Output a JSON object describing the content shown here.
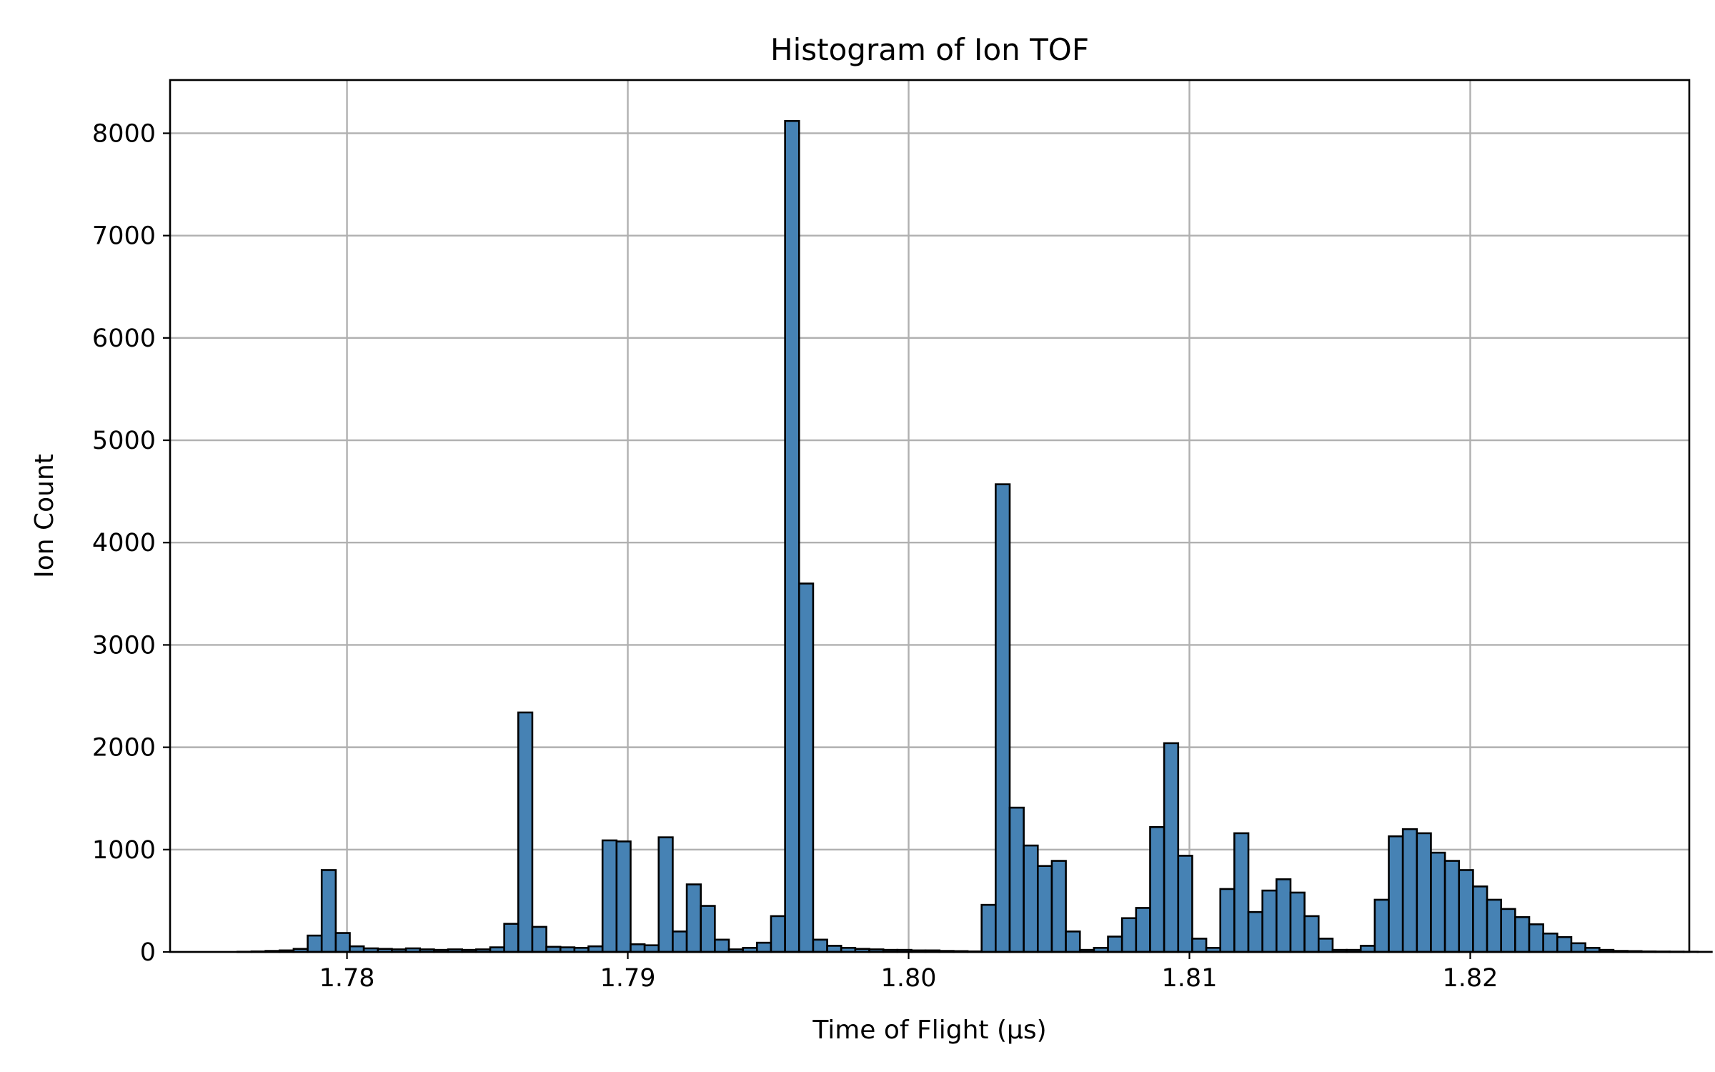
{
  "chart_data": {
    "type": "bar",
    "title": "Histogram of Ion TOF",
    "xlabel": "Time of Flight (µs)",
    "ylabel": "Ion Count",
    "xlim": [
      1.7737,
      1.8278
    ],
    "ylim": [
      0,
      8520
    ],
    "grid": true,
    "bar_color": "#4682b4",
    "edge_color": "#000000",
    "x_ticks": [
      1.78,
      1.79,
      1.8,
      1.81,
      1.82
    ],
    "x_tick_labels": [
      "1.78",
      "1.79",
      "1.80",
      "1.81",
      "1.82"
    ],
    "y_ticks": [
      0,
      1000,
      2000,
      3000,
      4000,
      5000,
      6000,
      7000,
      8000
    ],
    "y_tick_labels": [
      "0",
      "1000",
      "2000",
      "3000",
      "4000",
      "5000",
      "6000",
      "7000",
      "8000"
    ],
    "bin_start": 1.7761,
    "bin_width": 0.0005,
    "values": [
      2,
      5,
      10,
      15,
      30,
      160,
      800,
      185,
      55,
      35,
      30,
      25,
      35,
      25,
      20,
      25,
      20,
      25,
      45,
      275,
      2340,
      245,
      50,
      45,
      40,
      55,
      1090,
      1080,
      75,
      65,
      1120,
      200,
      660,
      450,
      120,
      25,
      40,
      90,
      350,
      8120,
      3600,
      120,
      60,
      40,
      30,
      25,
      20,
      20,
      15,
      15,
      10,
      8,
      5,
      460,
      4570,
      1410,
      1040,
      840,
      890,
      200,
      20,
      40,
      150,
      330,
      430,
      1220,
      2040,
      940,
      130,
      40,
      615,
      1160,
      390,
      600,
      710,
      580,
      350,
      130,
      20,
      20,
      60,
      510,
      1130,
      1200,
      1160,
      970,
      890,
      800,
      640,
      510,
      420,
      340,
      270,
      180,
      145,
      85,
      40,
      20,
      10,
      8,
      5,
      4,
      3,
      2,
      1
    ]
  }
}
